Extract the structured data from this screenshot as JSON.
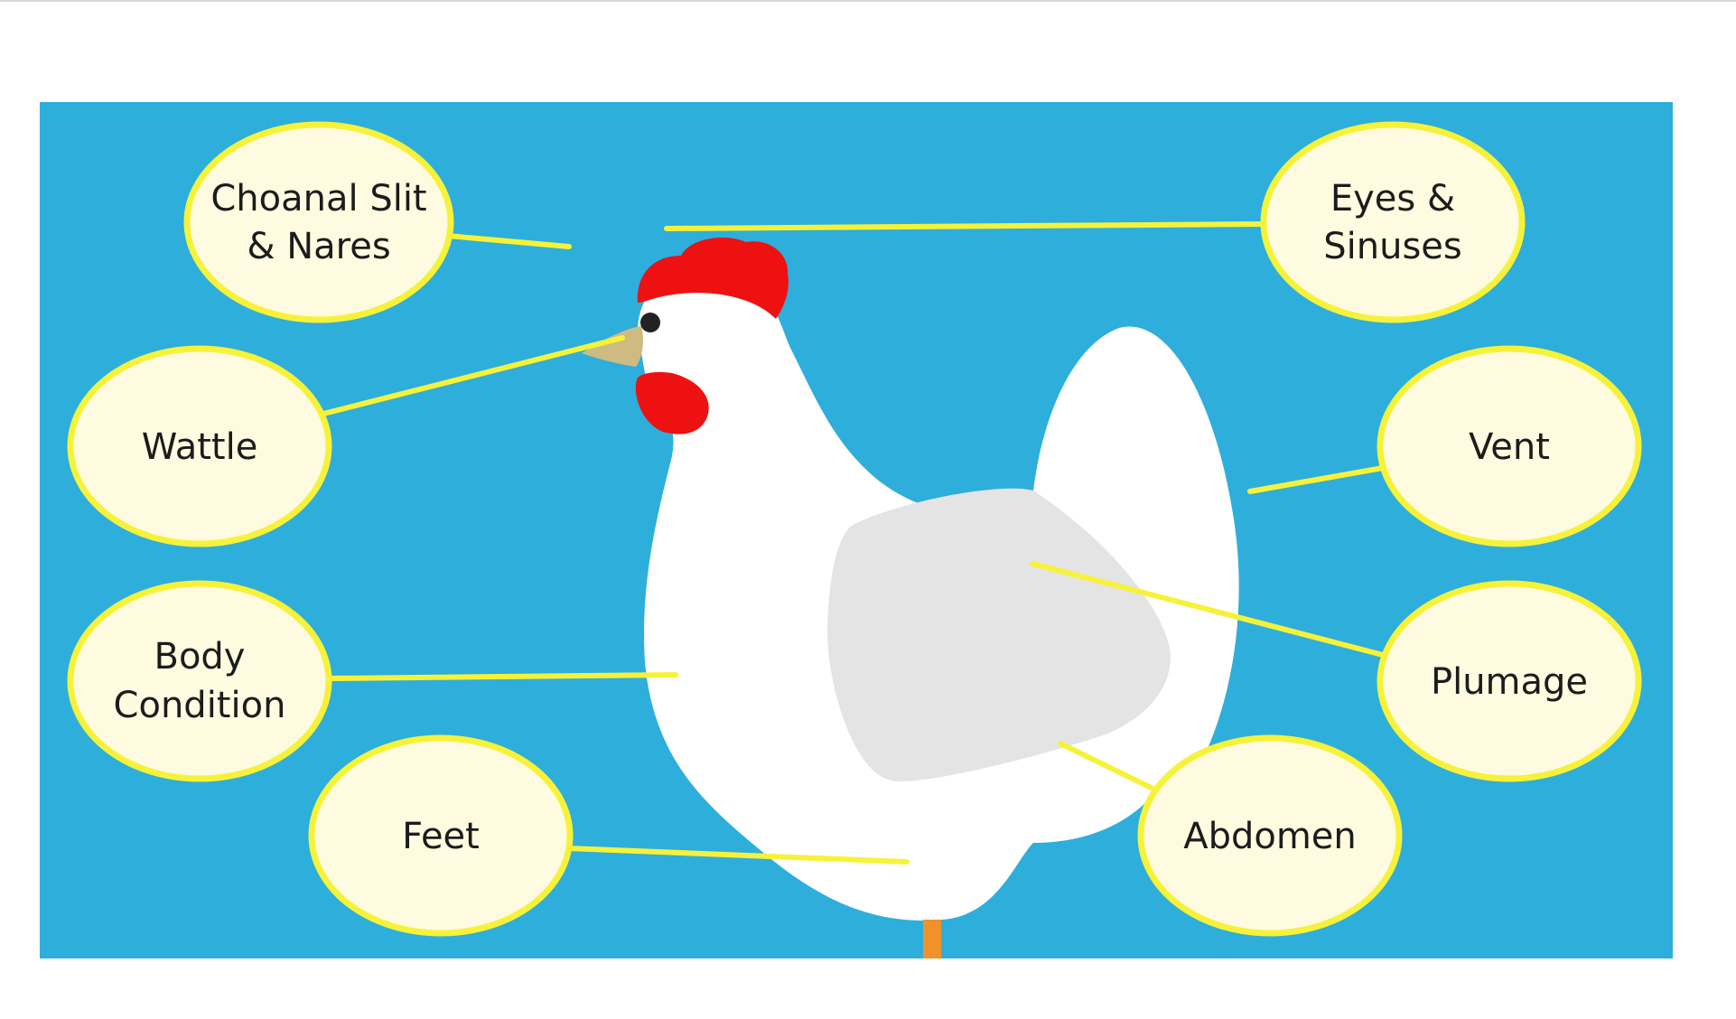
{
  "diagram": {
    "labels": {
      "choanal": {
        "line1": "Choanal Slit",
        "line2": "& Nares"
      },
      "eyes": {
        "line1": "Eyes &",
        "line2": "Sinuses"
      },
      "wattle": {
        "line1": "Wattle"
      },
      "vent": {
        "line1": "Vent"
      },
      "body": {
        "line1": "Body",
        "line2": "Condition"
      },
      "plumage": {
        "line1": "Plumage"
      },
      "feet": {
        "line1": "Feet"
      },
      "abdomen": {
        "line1": "Abdomen"
      }
    },
    "colors": {
      "background": "#2eaedb",
      "bubble_fill": "#fffbe0",
      "bubble_stroke": "#f6f23a",
      "leader_line": "#f6f23a",
      "hen_body": "#ffffff",
      "hen_wing": "#e4e4e4",
      "comb": "#ee1111",
      "beak": "#cdbb82",
      "leg": "#f0922b",
      "foot": "#f5eec3",
      "eye": "#222222"
    }
  }
}
